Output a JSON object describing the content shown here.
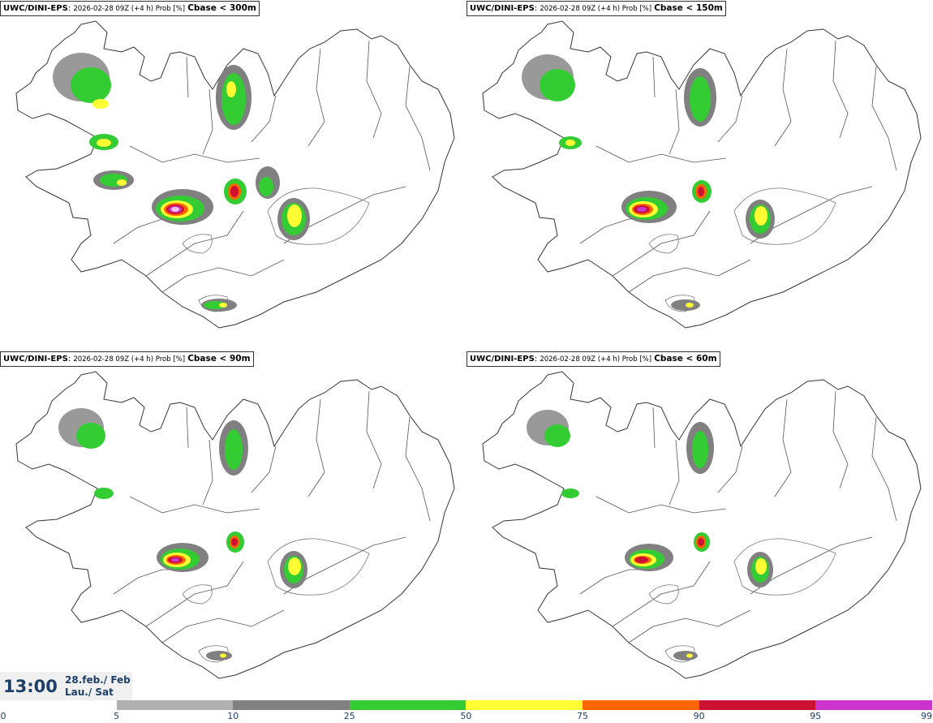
{
  "panels": [
    {
      "model": "UWC/DINI-EPS",
      "meta": "2026-02-28 09Z (+4 h) Prob [%]",
      "threshold": "Cbase < 300m"
    },
    {
      "model": "UWC/DINI-EPS",
      "meta": "2026-02-28 09Z (+4 h) Prob [%]",
      "threshold": "Cbase < 150m"
    },
    {
      "model": "UWC/DINI-EPS",
      "meta": "2026-02-28 09Z (+4 h) Prob [%]",
      "threshold": "Cbase < 90m"
    },
    {
      "model": "UWC/DINI-EPS",
      "meta": "2026-02-28 09Z (+4 h) Prob [%]",
      "threshold": "Cbase < 60m"
    }
  ],
  "valid": {
    "time": "13:00",
    "date_line1": "28.feb./ Feb",
    "date_line2": "Lau./ Sat"
  },
  "legend": {
    "ticks": [
      "0",
      "5",
      "10",
      "25",
      "50",
      "75",
      "90",
      "95",
      "99"
    ],
    "colors": [
      "#ffffff",
      "#b0b0b0",
      "#808080",
      "#33cc33",
      "#ffff33",
      "#ff6600",
      "#cc1133",
      "#cc33cc",
      "#f3c0f3"
    ]
  }
}
